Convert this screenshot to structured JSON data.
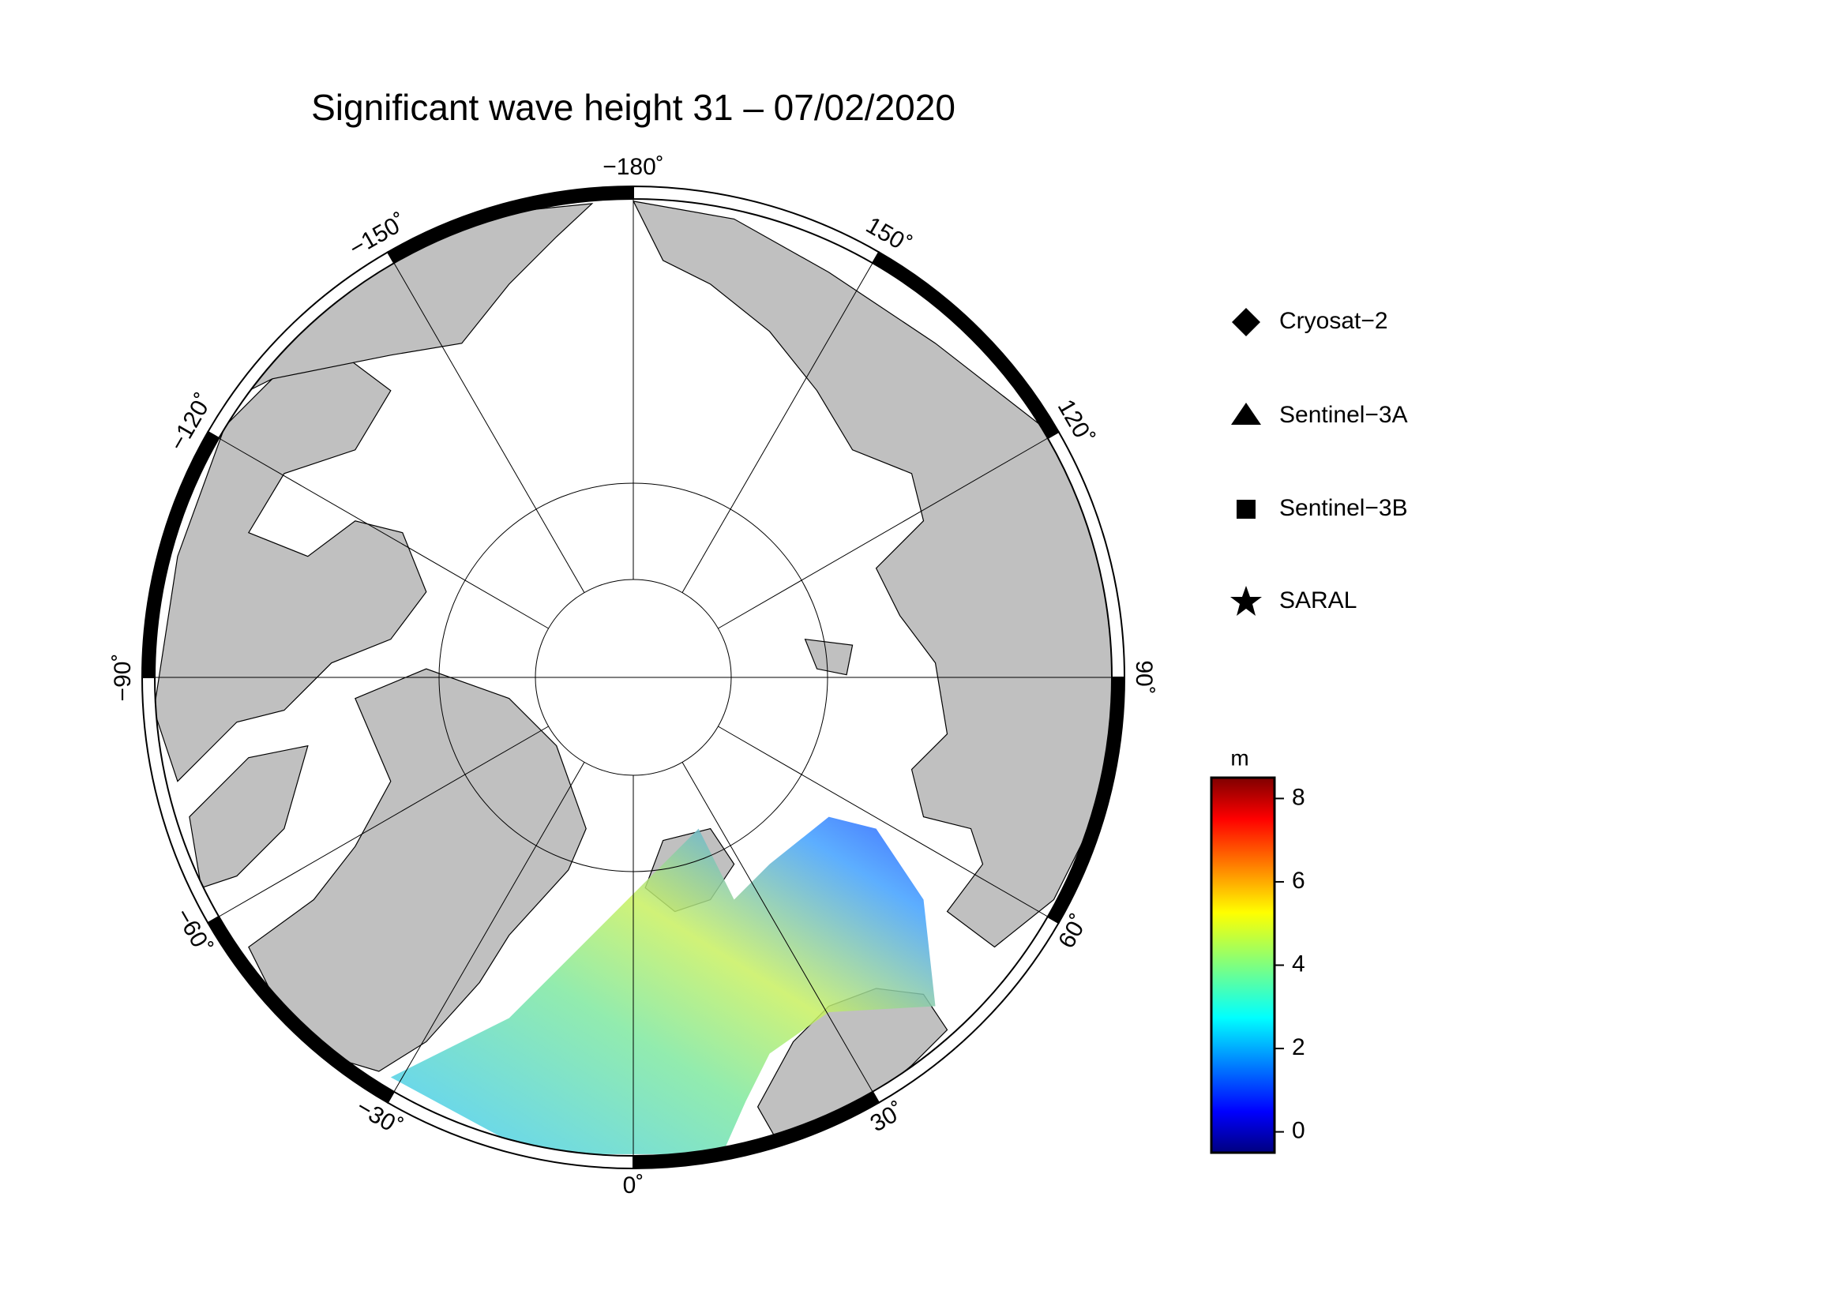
{
  "title": "Significant wave height 31 – 07/02/2020",
  "longitude_labels": [
    {
      "value": -180,
      "label": "−180˚"
    },
    {
      "value": -150,
      "label": "−150˚"
    },
    {
      "value": 150,
      "label": "150˚"
    },
    {
      "value": -120,
      "label": "−120˚"
    },
    {
      "value": 120,
      "label": "120˚"
    },
    {
      "value": -90,
      "label": "−90˚"
    },
    {
      "value": 90,
      "label": "90˚"
    },
    {
      "value": -60,
      "label": "−60˚"
    },
    {
      "value": 60,
      "label": "60˚"
    },
    {
      "value": -30,
      "label": "−30˚"
    },
    {
      "value": 30,
      "label": "30˚"
    },
    {
      "value": 0,
      "label": "0˚"
    }
  ],
  "legend": [
    "Cryosat−2",
    "Sentinel−3A",
    "Sentinel−3B",
    "SARAL"
  ],
  "colorbar": {
    "unit": "m",
    "lim": [
      -0.5,
      8.5
    ],
    "ticks": [
      0,
      2,
      4,
      6,
      8
    ]
  }
}
